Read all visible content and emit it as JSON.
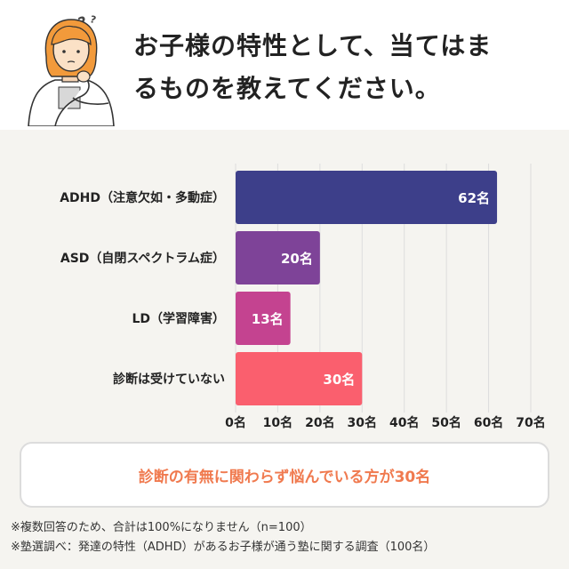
{
  "question": {
    "line1": "お子様の特性として、当てはま",
    "line2": "るものを教えてください。"
  },
  "chart_data": {
    "type": "bar",
    "orientation": "horizontal",
    "categories": [
      "ADHD（注意欠如・多動症）",
      "ASD（自閉スペクトラム症）",
      "LD（学習障害）",
      "診断は受けていない"
    ],
    "values": [
      62,
      20,
      13,
      30
    ],
    "value_labels": [
      "62名",
      "20名",
      "13名",
      "30名"
    ],
    "bar_colors": [
      "#3d3f8a",
      "#7e4398",
      "#c44390",
      "#fa5f6e"
    ],
    "x_ticks": [
      0,
      10,
      20,
      30,
      40,
      50,
      60,
      70
    ],
    "x_tick_labels": [
      "0名",
      "10名",
      "20名",
      "30名",
      "40名",
      "50名",
      "60名",
      "70名"
    ],
    "xlim": [
      0,
      70
    ],
    "grid": true,
    "title": "",
    "xlabel": "",
    "ylabel": ""
  },
  "callout": {
    "text": "診断の有無に関わらず悩んでいる方が30名"
  },
  "notes": {
    "note1": "※複数回答のため、合計は100%になりません（n=100）",
    "note2": "※塾選調べ：発達の特性（ADHD）があるお子様が通う塾に関する調査（100名）"
  },
  "colors": {
    "callout_text": "#f07a4f",
    "grid": "#dddddd",
    "background": "#f5f4f0"
  }
}
